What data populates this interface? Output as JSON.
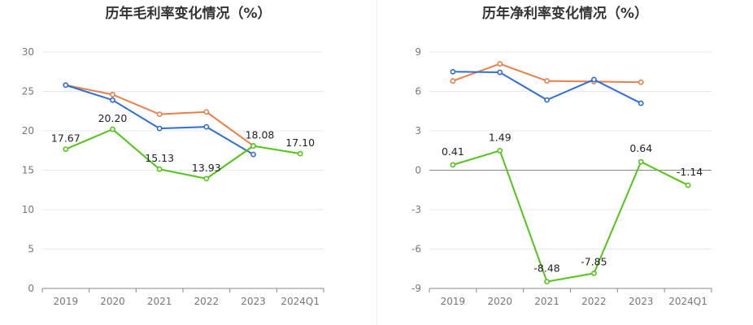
{
  "chart_data": [
    {
      "type": "line",
      "title": "历年毛利率变化情况（%）",
      "categories": [
        "2019",
        "2020",
        "2021",
        "2022",
        "2023",
        "2024Q1"
      ],
      "ylim": [
        0,
        30
      ],
      "yticks": [
        0,
        5,
        10,
        15,
        20,
        25,
        30
      ],
      "grid": true,
      "series": [
        {
          "color": "#e8804a",
          "values": [
            25.8,
            24.6,
            22.1,
            22.4,
            18.1,
            null
          ]
        },
        {
          "color": "#2f6fd0",
          "values": [
            25.8,
            23.9,
            20.3,
            20.5,
            17.0,
            null
          ]
        },
        {
          "color": "#52c41a",
          "values": [
            17.67,
            20.2,
            15.13,
            13.93,
            18.08,
            17.1
          ],
          "labels": [
            "17.67",
            "20.20",
            "15.13",
            "13.93",
            "18.08",
            "17.10"
          ]
        }
      ]
    },
    {
      "type": "line",
      "title": "历年净利率变化情况（%）",
      "categories": [
        "2019",
        "2020",
        "2021",
        "2022",
        "2023",
        "2024Q1"
      ],
      "ylim": [
        -9,
        9
      ],
      "yticks": [
        -9,
        -6,
        -3,
        0,
        3,
        6,
        9
      ],
      "grid": true,
      "series": [
        {
          "color": "#e8804a",
          "values": [
            6.8,
            8.1,
            6.8,
            6.75,
            6.7,
            null
          ]
        },
        {
          "color": "#2f6fd0",
          "values": [
            7.5,
            7.45,
            5.35,
            6.9,
            5.1,
            null
          ]
        },
        {
          "color": "#52c41a",
          "values": [
            0.41,
            1.49,
            -8.48,
            -7.85,
            0.64,
            -1.14
          ],
          "labels": [
            "0.41",
            "1.49",
            "-8.48",
            "-7.85",
            "0.64",
            "-1.14"
          ]
        }
      ]
    }
  ]
}
